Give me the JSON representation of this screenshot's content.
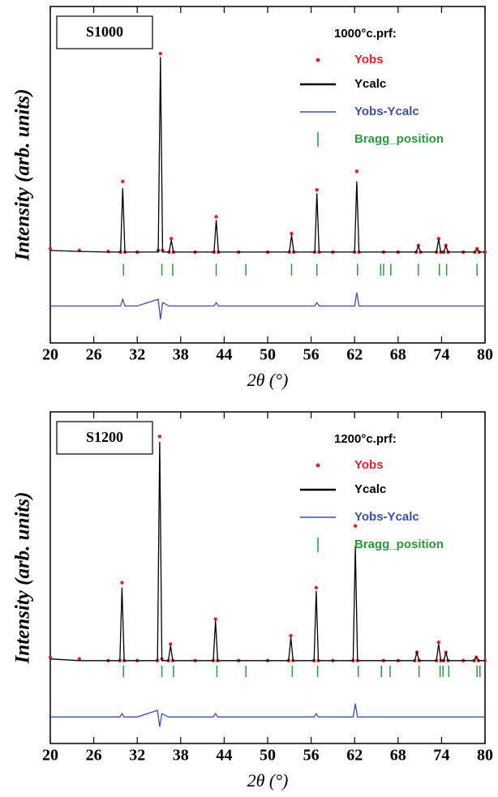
{
  "chart_data": [
    {
      "type": "line",
      "label": "S1000",
      "legend_title": "1000°c.prf:",
      "x_label": "2θ (°)",
      "y_label": "Intensity (arb. units)",
      "xlim": [
        20,
        80
      ],
      "xticks": [
        20,
        26,
        32,
        38,
        44,
        50,
        56,
        62,
        68,
        74,
        80
      ],
      "ylim": [
        0,
        100
      ],
      "x": [
        20,
        24,
        28,
        29.7,
        30,
        30.3,
        32,
        34.9,
        35.2,
        35.5,
        36.4,
        36.7,
        37,
        40,
        42.6,
        42.9,
        43.2,
        46,
        50,
        53,
        53.3,
        53.6,
        56.5,
        56.8,
        57.1,
        59,
        62,
        62.3,
        62.6,
        66,
        68,
        70.5,
        70.8,
        71.1,
        73.3,
        73.6,
        73.9,
        74.3,
        74.6,
        74.9,
        77,
        78.6,
        78.9,
        79.2,
        80
      ],
      "series": [
        {
          "name": "Yobs",
          "color": "#e8202a",
          "mode": "markers",
          "values": [
            28,
            27.5,
            27.2,
            27,
            48,
            27,
            27,
            27.5,
            86,
            27.5,
            27,
            31,
            27,
            27,
            27,
            37.5,
            27,
            27,
            27,
            27,
            32.5,
            27,
            27,
            45.5,
            27,
            27,
            27,
            51,
            27,
            27,
            27,
            27,
            29,
            27,
            27,
            31,
            27,
            27,
            29,
            27,
            27,
            27,
            28,
            27,
            27
          ]
        },
        {
          "name": "Ycalc",
          "color": "#000000",
          "mode": "line",
          "values": [
            27.5,
            27.2,
            27,
            27,
            46,
            27,
            27,
            27,
            85,
            27,
            27,
            30.5,
            27,
            27,
            27,
            36.5,
            27,
            27,
            27,
            27,
            32,
            27,
            27,
            44.5,
            27,
            27,
            27,
            48,
            27,
            27,
            27,
            27,
            28.8,
            27,
            27,
            30.8,
            27,
            27,
            28.8,
            27,
            27,
            27,
            27.8,
            27,
            27
          ]
        },
        {
          "name": "Yobs-Ycalc",
          "color": "#3a4fb0",
          "mode": "line",
          "values": [
            11,
            11,
            11,
            11,
            13,
            11,
            11,
            13,
            7,
            12,
            11,
            11,
            11,
            11,
            11,
            12,
            11,
            11,
            11,
            11,
            11,
            11,
            11,
            12,
            11,
            11,
            11,
            15,
            11,
            11,
            11,
            11,
            11,
            11,
            11,
            11,
            11,
            11,
            11,
            11,
            11,
            11,
            11,
            11,
            11
          ]
        },
        {
          "name": "Bragg_position",
          "color": "#2a9a3a",
          "mode": "ticks",
          "x": [
            30.1,
            35.4,
            36.9,
            42.9,
            47.0,
            53.3,
            56.8,
            62.4,
            65.6,
            66.0,
            67.0,
            70.8,
            73.7,
            74.7,
            78.9
          ]
        }
      ]
    },
    {
      "type": "line",
      "label": "S1200",
      "legend_title": "1200°c.prf:",
      "x_label": "2θ (°)",
      "y_label": "Intensity (arb. units)",
      "xlim": [
        20,
        80
      ],
      "xticks": [
        20,
        26,
        32,
        38,
        44,
        50,
        56,
        62,
        68,
        74,
        80
      ],
      "ylim": [
        0,
        100
      ],
      "x": [
        20,
        24,
        28,
        29.6,
        29.9,
        30.2,
        32,
        34.8,
        35.1,
        35.4,
        36.3,
        36.6,
        36.9,
        40,
        42.5,
        42.8,
        43.1,
        46,
        50,
        52.9,
        53.2,
        53.5,
        56.4,
        56.7,
        57,
        59,
        61.8,
        62.1,
        62.4,
        66,
        68,
        70.3,
        70.6,
        70.9,
        73.3,
        73.6,
        73.9,
        74.3,
        74.6,
        74.9,
        77,
        78.5,
        78.8,
        79.1,
        80
      ],
      "series": [
        {
          "name": "Yobs",
          "color": "#e8202a",
          "mode": "markers",
          "values": [
            26,
            25.5,
            25,
            25,
            48.5,
            25,
            25,
            25,
            92.6,
            25.5,
            25,
            30,
            25,
            25,
            25,
            37.5,
            25,
            25,
            25,
            25,
            32.5,
            25,
            25,
            47,
            25,
            25,
            25,
            65.6,
            25,
            25,
            25,
            25,
            27.5,
            25,
            25,
            30.5,
            25,
            25,
            27.5,
            25,
            25,
            25,
            26,
            25,
            25
          ]
        },
        {
          "name": "Ycalc",
          "color": "#000000",
          "mode": "line",
          "values": [
            25.5,
            25,
            25,
            25,
            47,
            25,
            25,
            25,
            91,
            25,
            25,
            29.5,
            25,
            25,
            25,
            37,
            25,
            25,
            25,
            25,
            32,
            25,
            25,
            46,
            25,
            25,
            25,
            59.5,
            25,
            25,
            25,
            25,
            27.5,
            25,
            25,
            30,
            25,
            25,
            27.5,
            25,
            25,
            25,
            26,
            25,
            25
          ]
        },
        {
          "name": "Yobs-Ycalc",
          "color": "#3a4fb0",
          "mode": "line",
          "values": [
            8,
            8,
            8,
            8,
            9,
            8,
            8,
            10,
            5,
            9,
            8,
            8,
            8,
            8,
            8,
            9,
            8,
            8,
            8,
            8,
            8,
            8,
            8,
            9,
            8,
            8,
            8,
            12,
            8,
            8,
            8,
            8,
            8,
            8,
            8,
            8,
            8,
            8,
            8,
            8,
            8,
            8,
            8,
            8,
            8
          ]
        },
        {
          "name": "Bragg_position",
          "color": "#2a9a3a",
          "mode": "ticks",
          "x": [
            30.1,
            35.4,
            37.0,
            43.0,
            47.0,
            53.4,
            56.9,
            62.5,
            65.7,
            66.9,
            70.9,
            73.8,
            74.2,
            75.0,
            78.9,
            79.3
          ]
        }
      ]
    }
  ]
}
